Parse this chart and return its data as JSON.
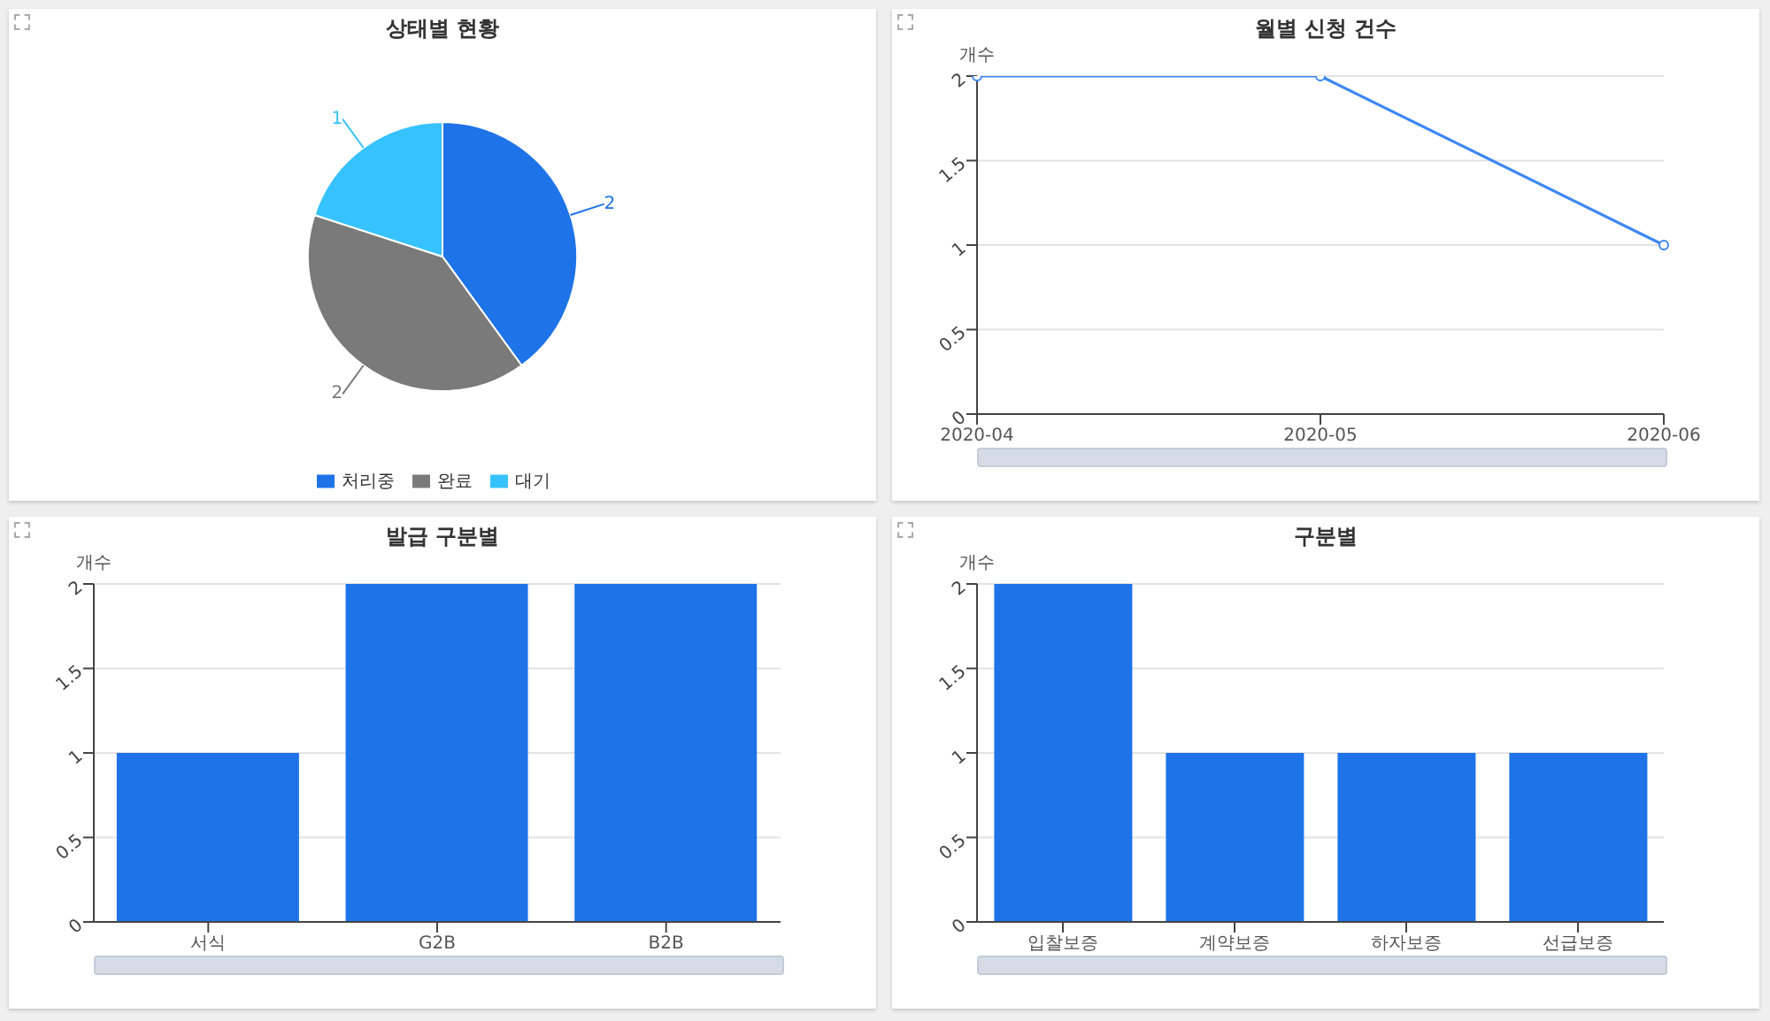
{
  "chart_data": [
    {
      "type": "pie",
      "title": "상태별 현황",
      "categories": [
        "처리중",
        "완료",
        "대기"
      ],
      "values": [
        2,
        2,
        1
      ],
      "colors": [
        "#1e73e8",
        "#7a7a7a",
        "#36c2fe"
      ],
      "data_labels": true,
      "legend": "bottom"
    },
    {
      "type": "line",
      "title": "월별 신청 건수",
      "ylabel": "개수",
      "categories": [
        "2020-04",
        "2020-05",
        "2020-06"
      ],
      "values": [
        2,
        2,
        1
      ],
      "color": "#3d87f5",
      "ylim": [
        0,
        2
      ],
      "yticks": [
        0,
        0.5,
        1,
        1.5,
        2
      ],
      "grid": "y",
      "marker": "circle"
    },
    {
      "type": "bar",
      "title": "발급 구분별",
      "ylabel": "개수",
      "categories": [
        "서식",
        "G2B",
        "B2B"
      ],
      "values": [
        1,
        2,
        2
      ],
      "color": "#1e73e8",
      "ylim": [
        0,
        2
      ],
      "yticks": [
        0,
        0.5,
        1,
        1.5,
        2
      ],
      "grid": "y"
    },
    {
      "type": "bar",
      "title": "구분별",
      "ylabel": "개수",
      "categories": [
        "입찰보증",
        "계약보증",
        "하자보증",
        "선급보증"
      ],
      "values": [
        2,
        1,
        1,
        1
      ],
      "color": "#1e73e8",
      "ylim": [
        0,
        2
      ],
      "yticks": [
        0,
        0.5,
        1,
        1.5,
        2
      ],
      "grid": "y"
    }
  ]
}
